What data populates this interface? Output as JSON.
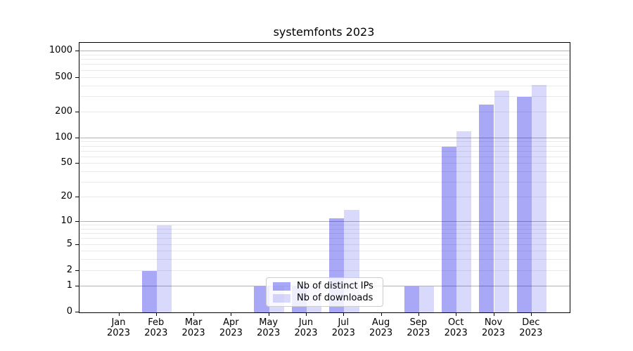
{
  "chart_data": {
    "type": "bar",
    "title": "systemfonts 2023",
    "xlabel": "",
    "ylabel": "",
    "year_label": "2023",
    "categories": [
      "Jan",
      "Feb",
      "Mar",
      "Apr",
      "May",
      "Jun",
      "Jul",
      "Aug",
      "Sep",
      "Oct",
      "Nov",
      "Dec"
    ],
    "series": [
      {
        "name": "Nb of distinct IPs",
        "values": [
          0,
          2,
          0,
          0,
          1,
          1,
          11,
          0,
          1,
          80,
          245,
          300
        ]
      },
      {
        "name": "Nb of downloads",
        "values": [
          0,
          9,
          0,
          0,
          1,
          1,
          14,
          0,
          1,
          120,
          355,
          415
        ]
      }
    ],
    "yscale": "log1p",
    "ylim": [
      0,
      1260
    ],
    "y_ticks": [
      0,
      1,
      2,
      5,
      10,
      20,
      50,
      100,
      200,
      500,
      1000
    ],
    "gridlines": {
      "major": [
        1,
        10,
        100,
        1000
      ],
      "minor": [
        2,
        3,
        4,
        5,
        6,
        7,
        8,
        9,
        20,
        30,
        40,
        50,
        60,
        70,
        80,
        90,
        200,
        300,
        400,
        500,
        600,
        700,
        800,
        900
      ]
    },
    "legend_position": "inside lower-center-left",
    "colors": {
      "distinct_ips": "rgba(0,0,230,0.34)",
      "distinct_ips_hex_on_white": "#a9a9f7",
      "downloads": "rgba(0,0,230,0.15)",
      "downloads_hex_on_white": "#dcdcf9",
      "grid_major": "#b3b3b3",
      "grid_minor": "#eaeaea",
      "spine": "#000000"
    }
  }
}
